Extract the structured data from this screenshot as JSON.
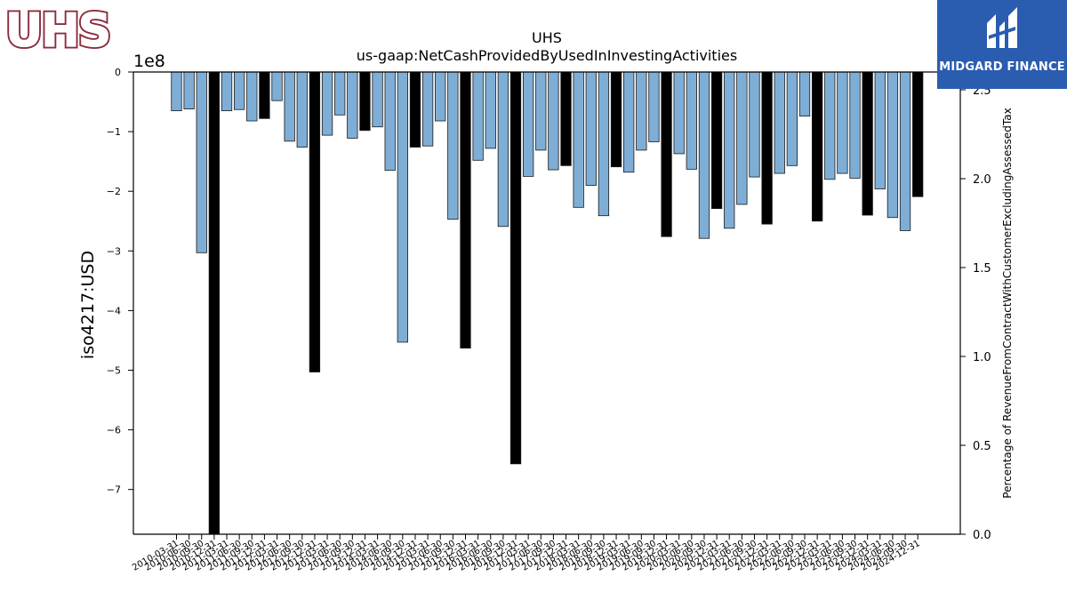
{
  "logos": {
    "left_text": "UHS",
    "right_text": "MIDGARD FINANCE"
  },
  "chart_data": {
    "type": "bar",
    "title": "UHS",
    "subtitle": "us-gaap:NetCashProvidedByUsedInInvestingActivities",
    "ylabel": "iso4217:USD",
    "ylabel_right": "Percentage of RevenueFromContractWithCustomerExcludingAssessedTax",
    "y_exponent_label": "1e8",
    "ylim": [
      -7.75,
      0
    ],
    "y_ticks": [
      0,
      -1,
      -2,
      -3,
      -4,
      -5,
      -6,
      -7
    ],
    "y_tick_labels": [
      "0",
      "−1",
      "−2",
      "−3",
      "−4",
      "−5",
      "−6",
      "−7"
    ],
    "ylim_right": [
      0,
      2.6
    ],
    "y_ticks_right": [
      0.0,
      0.5,
      1.0,
      1.5,
      2.0,
      2.5
    ],
    "y_tick_labels_right": [
      "0.0",
      "0.5",
      "1.0",
      "1.5",
      "2.0",
      "2.5"
    ],
    "bar_colors": {
      "quarterly": "#7eaed6",
      "annual": "#000000",
      "edge": "#1a1a1a"
    },
    "categories": [
      "2010-03-31",
      "2010-06-30",
      "2010-09-30",
      "2010-12-31",
      "2011-03-31",
      "2011-06-30",
      "2011-09-30",
      "2011-12-31",
      "2012-03-31",
      "2012-06-30",
      "2012-09-30",
      "2012-12-31",
      "2013-03-31",
      "2013-06-30",
      "2013-09-30",
      "2013-12-31",
      "2014-03-31",
      "2014-06-30",
      "2014-09-30",
      "2014-12-31",
      "2015-03-31",
      "2015-06-30",
      "2015-09-30",
      "2015-12-31",
      "2016-03-31",
      "2016-06-30",
      "2016-09-30",
      "2016-12-31",
      "2017-03-31",
      "2017-06-30",
      "2017-09-30",
      "2017-12-31",
      "2018-03-31",
      "2018-06-30",
      "2018-09-30",
      "2018-12-31",
      "2019-03-31",
      "2019-06-30",
      "2019-09-30",
      "2019-12-31",
      "2020-03-31",
      "2020-06-30",
      "2020-09-30",
      "2020-12-31",
      "2021-03-31",
      "2021-06-30",
      "2021-09-30",
      "2021-12-31",
      "2022-03-31",
      "2022-06-30",
      "2022-09-30",
      "2022-12-31",
      "2023-03-31",
      "2023-06-30",
      "2023-09-30",
      "2023-12-31",
      "2024-03-31",
      "2024-06-30",
      "2024-09-30",
      "2024-12-31"
    ],
    "visible_tick_labels": [
      "2010-03-31",
      "2010-06-30",
      "2010-09-30",
      "2010-12-31",
      "2011-03-31",
      "2011-06-30",
      "2011-09-30",
      "2011-12-31",
      "2012-03-31",
      "2012-06-30",
      "2012-09-30",
      "2012-12-31",
      "2013-03-31",
      "2013-06-30",
      "2013-09-30",
      "2013-12-31",
      "2014-03-31",
      "2014-06-30",
      "2014-09-30",
      "2014-12-31",
      "2015-03-31",
      "2015-06-30",
      "2015-09-30",
      "2015-12-31",
      "2016-03-31",
      "2016-06-30",
      "2016-09-30",
      "2016-12-31",
      "2017-03-31",
      "2017-06-30",
      "2017-09-30",
      "2017-12-31",
      "2018-03-31",
      "2018-06-30",
      "2018-09-30",
      "2018-12-31",
      "2019-03-31",
      "2019-06-30",
      "2019-09-30",
      "2019-12-31",
      "2020-03-31",
      "2020-06-30",
      "2020-09-30",
      "2020-12-31",
      "2021-03-31",
      "2021-06-30",
      "2021-09-30",
      "2021-12-31",
      "2022-03-31",
      "2022-06-30",
      "2022-09-30",
      "2022-12-31",
      "2023-03-31",
      "2023-06-30",
      "2023-09-30",
      "2023-12-31",
      "2024-03-31",
      "2024-06-30",
      "2024-09-30",
      "2024-12-31"
    ],
    "values": [
      -0.65,
      -0.62,
      -3.03,
      -7.75,
      -0.65,
      -0.63,
      -0.82,
      -0.78,
      -0.48,
      -1.16,
      -1.26,
      -5.03,
      -1.06,
      -0.72,
      -1.11,
      -0.98,
      -0.92,
      -1.65,
      -4.53,
      -1.26,
      -1.24,
      -0.82,
      -2.47,
      -4.63,
      -1.48,
      -1.28,
      -2.59,
      -6.57,
      -1.75,
      -1.31,
      -1.64,
      -1.57,
      -2.27,
      -1.9,
      -2.41,
      -1.59,
      -1.68,
      -1.31,
      -1.17,
      -2.76,
      -1.37,
      -1.63,
      -2.79,
      -2.29,
      -2.62,
      -2.22,
      -1.76,
      -2.55,
      -1.7,
      -1.57,
      -0.74,
      -2.5,
      -1.8,
      -1.7,
      -1.78,
      -2.4,
      -1.96,
      -2.44,
      -2.66,
      -2.09
    ],
    "annual": [
      false,
      false,
      false,
      true,
      false,
      false,
      false,
      true,
      false,
      false,
      false,
      true,
      false,
      false,
      false,
      true,
      false,
      false,
      false,
      true,
      false,
      false,
      false,
      true,
      false,
      false,
      false,
      true,
      false,
      false,
      false,
      true,
      false,
      false,
      false,
      true,
      false,
      false,
      false,
      true,
      false,
      false,
      false,
      true,
      false,
      false,
      false,
      true,
      false,
      false,
      false,
      true,
      false,
      false,
      false,
      true,
      false,
      false,
      false,
      true
    ],
    "grid": false,
    "legend": "none"
  }
}
